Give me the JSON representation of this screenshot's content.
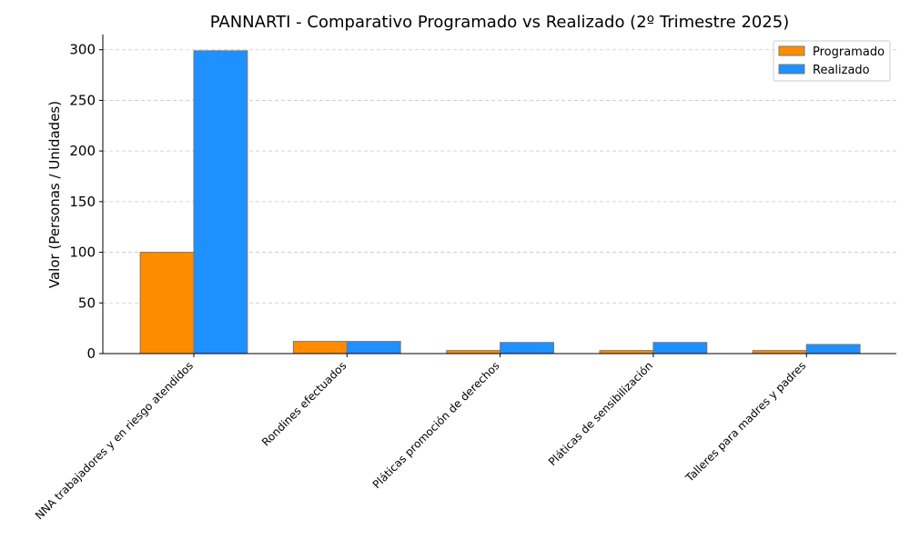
{
  "chart_data": {
    "type": "bar",
    "title": "PANNARTI - Comparativo Programado vs Realizado (2º Trimestre 2025)",
    "xlabel": "",
    "ylabel": "Valor (Personas / Unidades)",
    "categories": [
      "NNA trabajadores y en riesgo atendidos",
      "Rondines efectuados",
      "Pláticas promoción de derechos",
      "Pláticas de sensibilización",
      "Talleres para madres y padres"
    ],
    "series": [
      {
        "name": "Programado",
        "color": "#FF8C00",
        "values": [
          100,
          12,
          3,
          3,
          3
        ]
      },
      {
        "name": "Realizado",
        "color": "#1E90FF",
        "values": [
          299,
          12,
          11,
          11,
          9
        ]
      }
    ],
    "ylim": [
      0,
      315
    ],
    "yticks": [
      0,
      50,
      100,
      150,
      200,
      250,
      300
    ],
    "grid": "y-dashed",
    "legend": "top-right"
  }
}
